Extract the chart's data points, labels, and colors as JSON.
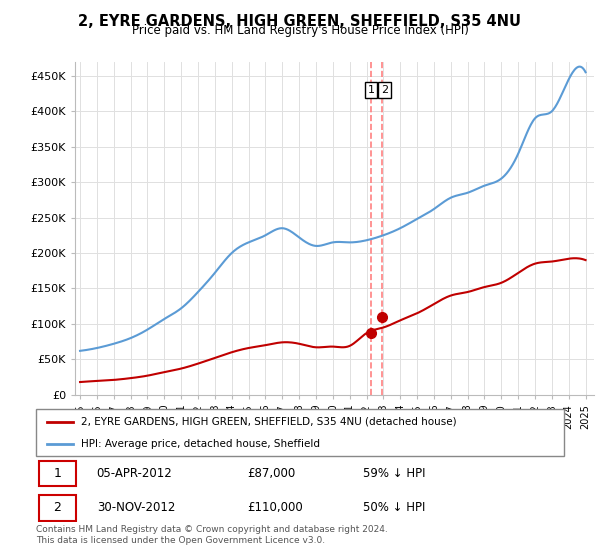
{
  "title": "2, EYRE GARDENS, HIGH GREEN, SHEFFIELD, S35 4NU",
  "subtitle": "Price paid vs. HM Land Registry's House Price Index (HPI)",
  "ylabel_ticks": [
    "£0",
    "£50K",
    "£100K",
    "£150K",
    "£200K",
    "£250K",
    "£300K",
    "£350K",
    "£400K",
    "£450K"
  ],
  "ytick_values": [
    0,
    50000,
    100000,
    150000,
    200000,
    250000,
    300000,
    350000,
    400000,
    450000
  ],
  "ylim": [
    0,
    470000
  ],
  "hpi_color": "#5b9bd5",
  "price_color": "#c00000",
  "grid_color": "#e0e0e0",
  "annotation_line_color": "#ff8080",
  "transaction1": {
    "date_num": 2012.27,
    "price": 87000,
    "label": "1"
  },
  "transaction2": {
    "date_num": 2012.92,
    "price": 110000,
    "label": "2"
  },
  "table_row1": [
    "1",
    "05-APR-2012",
    "£87,000",
    "59% ↓ HPI"
  ],
  "table_row2": [
    "2",
    "30-NOV-2012",
    "£110,000",
    "50% ↓ HPI"
  ],
  "footer": "Contains HM Land Registry data © Crown copyright and database right 2024.\nThis data is licensed under the Open Government Licence v3.0.",
  "legend_line1": "2, EYRE GARDENS, HIGH GREEN, SHEFFIELD, S35 4NU (detached house)",
  "legend_line2": "HPI: Average price, detached house, Sheffield",
  "hpi_data_years": [
    1995,
    1996,
    1997,
    1998,
    1999,
    2000,
    2001,
    2002,
    2003,
    2004,
    2005,
    2006,
    2007,
    2008,
    2009,
    2010,
    2011,
    2012,
    2013,
    2014,
    2015,
    2016,
    2017,
    2018,
    2019,
    2020,
    2021,
    2022,
    2023,
    2024,
    2025
  ],
  "hpi_data_values": [
    62000,
    66000,
    72000,
    80000,
    92000,
    107000,
    122000,
    145000,
    172000,
    200000,
    215000,
    225000,
    235000,
    222000,
    210000,
    215000,
    215000,
    218000,
    225000,
    235000,
    248000,
    262000,
    278000,
    285000,
    295000,
    305000,
    340000,
    390000,
    400000,
    445000,
    455000
  ],
  "price_data_years": [
    1995,
    1996,
    1997,
    1998,
    1999,
    2000,
    2001,
    2002,
    2003,
    2004,
    2005,
    2006,
    2007,
    2008,
    2009,
    2010,
    2011,
    2012,
    2013,
    2014,
    2015,
    2016,
    2017,
    2018,
    2019,
    2020,
    2021,
    2022,
    2023,
    2024,
    2025
  ],
  "price_data_values": [
    18000,
    19500,
    21000,
    23500,
    27000,
    32000,
    37000,
    44000,
    52000,
    60000,
    66000,
    70000,
    74000,
    72000,
    67000,
    68000,
    69000,
    87000,
    95000,
    105000,
    115000,
    128000,
    140000,
    145000,
    152000,
    158000,
    172000,
    185000,
    188000,
    192000,
    190000
  ]
}
